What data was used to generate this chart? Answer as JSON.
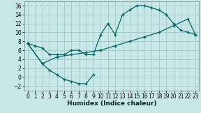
{
  "xlabel": "Humidex (Indice chaleur)",
  "bg_color": "#c8e8e8",
  "grid_color": "#aacccc",
  "line_color": "#006666",
  "curve1_x": [
    0,
    1,
    2,
    3,
    4,
    5,
    6,
    7,
    8,
    9,
    10,
    11,
    12,
    13,
    14,
    15,
    16,
    17,
    18,
    19,
    20,
    21,
    22,
    23
  ],
  "curve1_y": [
    7.5,
    7.0,
    6.5,
    5.0,
    5.0,
    5.0,
    6.0,
    6.0,
    5.0,
    5.0,
    9.5,
    12.0,
    9.5,
    14.0,
    15.0,
    16.0,
    16.0,
    15.5,
    15.0,
    14.0,
    12.0,
    10.5,
    10.0,
    9.5
  ],
  "curve2_x": [
    0,
    2,
    3,
    4,
    5,
    6,
    7,
    8,
    9
  ],
  "curve2_y": [
    7.5,
    3.0,
    1.5,
    0.5,
    -0.5,
    -1.0,
    -1.5,
    -1.5,
    0.5
  ],
  "curve3_x": [
    0,
    2,
    4,
    6,
    8,
    10,
    12,
    14,
    16,
    18,
    20,
    22,
    23
  ],
  "curve3_y": [
    7.5,
    3.0,
    4.5,
    5.0,
    5.5,
    6.0,
    7.0,
    8.0,
    9.0,
    10.0,
    11.5,
    13.0,
    9.5
  ],
  "xlim": [
    -0.5,
    23.5
  ],
  "ylim": [
    -3.0,
    17.0
  ],
  "yticks": [
    -2,
    0,
    2,
    4,
    6,
    8,
    10,
    12,
    14,
    16
  ],
  "xticks": [
    0,
    1,
    2,
    3,
    4,
    5,
    6,
    7,
    8,
    9,
    10,
    11,
    12,
    13,
    14,
    15,
    16,
    17,
    18,
    19,
    20,
    21,
    22,
    23
  ],
  "xlabel_fontsize": 6.5,
  "tick_fontsize": 5.5
}
